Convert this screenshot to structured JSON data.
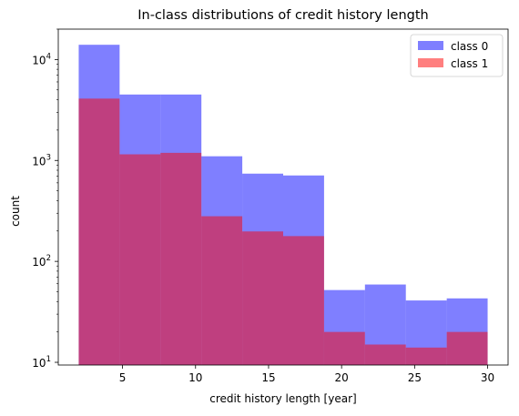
{
  "chart_data": {
    "type": "bar",
    "title": "In-class distributions of credit history length",
    "xlabel": "credit history length [year]",
    "ylabel": "count",
    "xlim": [
      0.6,
      31.4
    ],
    "ylim": [
      9.4,
      20000
    ],
    "yscale": "log",
    "x_ticks": [
      5,
      10,
      15,
      20,
      25,
      30
    ],
    "y_ticks": [
      {
        "value": 10,
        "base": "10",
        "exp": "1"
      },
      {
        "value": 100,
        "base": "10",
        "exp": "2"
      },
      {
        "value": 1000,
        "base": "10",
        "exp": "3"
      },
      {
        "value": 10000,
        "base": "10",
        "exp": "4"
      }
    ],
    "bin_edges": [
      2,
      4.8,
      7.6,
      10.4,
      13.2,
      16,
      18.8,
      21.6,
      24.4,
      27.2,
      30
    ],
    "series": [
      {
        "name": "class 0",
        "color": "#0000ff",
        "alpha": 0.5,
        "values": [
          14000,
          4500,
          4500,
          1100,
          740,
          710,
          52,
          59,
          41,
          43
        ]
      },
      {
        "name": "class 1",
        "color": "#ff0000",
        "alpha": 0.5,
        "values": [
          4100,
          1150,
          1190,
          280,
          198,
          178,
          20,
          15,
          14,
          20
        ]
      }
    ],
    "legend": "top-right",
    "grid": false
  }
}
